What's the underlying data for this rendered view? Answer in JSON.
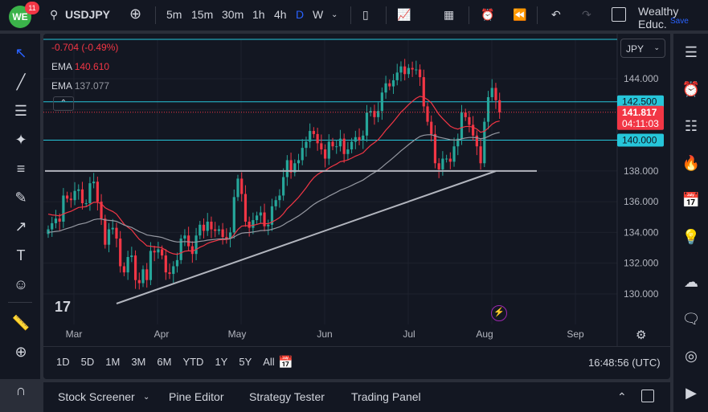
{
  "topbar": {
    "logo": "WE",
    "notifications": "11",
    "symbol": "USDJPY",
    "intervals": [
      "5m",
      "15m",
      "30m",
      "1h",
      "4h",
      "D",
      "W"
    ],
    "active_interval": "D",
    "account": "Wealthy Educ.",
    "save": "Save"
  },
  "legend": {
    "change": "-0.704 (-0.49%)",
    "ema1_label": "EMA",
    "ema1_value": "140.610",
    "ema2_label": "EMA",
    "ema2_value": "137.077"
  },
  "price_axis": {
    "currency": "JPY",
    "ticks": [
      "144.000",
      "138.000",
      "136.000",
      "134.000",
      "132.000",
      "130.000"
    ],
    "level_upper": "142.500",
    "level_lower": "140.000",
    "last_price": "141.817",
    "countdown": "04:11:03"
  },
  "time_axis": [
    "Mar",
    "Apr",
    "May",
    "Jun",
    "Jul",
    "Aug",
    "Sep"
  ],
  "ranges": [
    "1D",
    "5D",
    "1M",
    "3M",
    "6M",
    "YTD",
    "1Y",
    "5Y",
    "All"
  ],
  "clock": "16:48:56 (UTC)",
  "bottom_panel": {
    "tabs": [
      "Stock Screener",
      "Pine Editor",
      "Strategy Tester",
      "Trading Panel"
    ]
  },
  "colors": {
    "up": "#26a69a",
    "down": "#f23645",
    "level": "#26c6da",
    "ema_fast": "#f23645",
    "ema_slow": "#9598a1",
    "accent": "#2962ff"
  },
  "chart_data": {
    "type": "candlestick",
    "symbol": "USDJPY",
    "interval": "D",
    "ylim": [
      129,
      147
    ],
    "closes": [
      134.2,
      134.6,
      134.9,
      134.7,
      136.4,
      136.2,
      136.1,
      136.7,
      136.8,
      135.9,
      135.9,
      137.2,
      137.3,
      136.0,
      134.9,
      133.2,
      134.2,
      134.3,
      133.6,
      131.8,
      131.4,
      132.4,
      132.5,
      130.9,
      130.7,
      131.6,
      130.9,
      132.8,
      132.7,
      132.9,
      132.5,
      131.4,
      131.3,
      131.8,
      132.2,
      133.6,
      133.8,
      133.1,
      132.6,
      133.8,
      134.5,
      134.1,
      134.7,
      134.2,
      134.1,
      134.2,
      133.7,
      133.6,
      134.0,
      136.3,
      137.5,
      136.5,
      134.7,
      134.3,
      134.8,
      135.1,
      135.3,
      134.4,
      134.5,
      135.7,
      136.1,
      136.4,
      137.6,
      138.7,
      137.9,
      138.5,
      138.7,
      139.5,
      139.9,
      140.6,
      140.4,
      139.8,
      139.4,
      138.8,
      139.9,
      139.6,
      139.6,
      140.1,
      139.1,
      139.4,
      139.9,
      140.2,
      140.0,
      140.3,
      141.8,
      141.9,
      141.5,
      141.9,
      143.1,
      143.7,
      143.5,
      143.9,
      144.4,
      144.8,
      144.3,
      144.7,
      144.6,
      144.6,
      144.1,
      142.2,
      141.2,
      140.4,
      138.5,
      138.1,
      138.8,
      138.8,
      138.6,
      139.6,
      140.1,
      141.8,
      141.5,
      141.0,
      140.3,
      139.6,
      138.5,
      141.2,
      142.8,
      143.4,
      142.6,
      141.8
    ],
    "horizontal_levels": [
      142.5,
      140.0,
      138.0
    ],
    "indicators": [
      {
        "name": "EMA",
        "value": 140.61
      },
      {
        "name": "EMA",
        "value": 137.077
      }
    ]
  }
}
